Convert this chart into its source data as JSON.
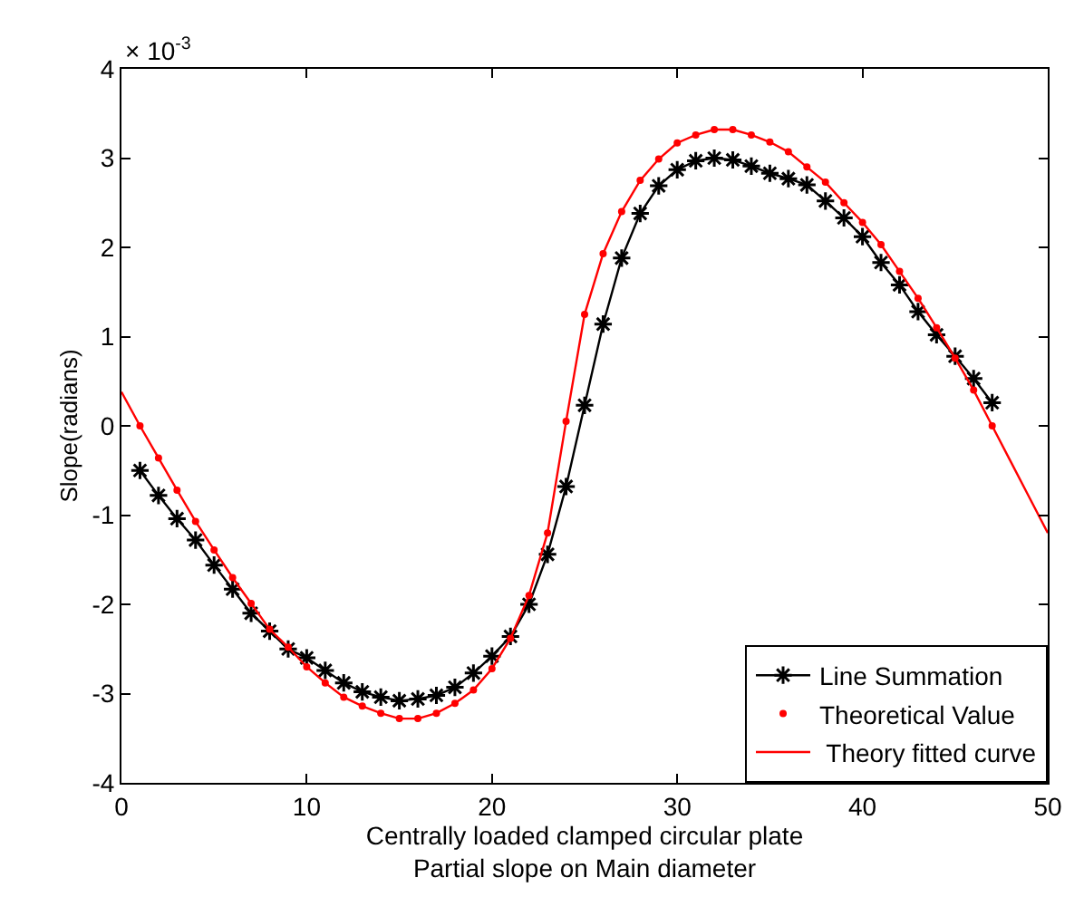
{
  "chart_data": {
    "type": "line",
    "xlabel": "Centrally loaded clamped circular plate\nPartial slope on Main diameter",
    "ylabel": "Slope(radians)",
    "annotations": [
      "× 10$^{-3}$"
    ],
    "xlim": [
      0,
      50
    ],
    "xticks": [
      0,
      10,
      20,
      30,
      40,
      50
    ],
    "ylim": [
      -4,
      4
    ],
    "yticks": [
      -4,
      -3,
      -2,
      -1,
      0,
      1,
      2,
      3,
      4
    ],
    "legend": "bottom right",
    "series": [
      {
        "name": "Line Summation",
        "color": "#000000",
        "marker": "cross",
        "line_style": "solid",
        "x": [
          1,
          2,
          3,
          4,
          5,
          6,
          7,
          8,
          9,
          10,
          11,
          12,
          13,
          14,
          15,
          16,
          17,
          18,
          19,
          20,
          21,
          22,
          23,
          24,
          25,
          26,
          27,
          28,
          29,
          30,
          31,
          32,
          33,
          34,
          35,
          36,
          37,
          38,
          39,
          40,
          41,
          42,
          43,
          44,
          45,
          46,
          47
        ],
        "values": [
          -0.5,
          -0.78,
          -1.04,
          -1.28,
          -1.56,
          -1.83,
          -2.1,
          -2.3,
          -2.5,
          -2.6,
          -2.74,
          -2.88,
          -2.98,
          -3.04,
          -3.08,
          -3.06,
          -3.02,
          -2.93,
          -2.77,
          -2.58,
          -2.36,
          -2.0,
          -1.44,
          -0.68,
          0.23,
          1.14,
          1.88,
          2.38,
          2.69,
          2.87,
          2.97,
          3.0,
          2.98,
          2.91,
          2.83,
          2.77,
          2.7,
          2.52,
          2.33,
          2.12,
          1.83,
          1.58,
          1.28,
          1.02,
          0.78,
          0.53,
          0.26
        ]
      },
      {
        "name": "Theoretical Value",
        "type": "scatter",
        "color": "#ff0000",
        "marker": "circle",
        "x": [
          1,
          2,
          3,
          4,
          5,
          6,
          7,
          8,
          9,
          10,
          11,
          12,
          13,
          14,
          15,
          16,
          17,
          18,
          19,
          20,
          21,
          22,
          23,
          24,
          25,
          26,
          27,
          28,
          29,
          30,
          31,
          32,
          33,
          34,
          35,
          36,
          37,
          38,
          39,
          40,
          41,
          42,
          43,
          44,
          45,
          46,
          47
        ],
        "values": [
          0.0,
          -0.36,
          -0.72,
          -1.07,
          -1.39,
          -1.7,
          -1.99,
          -2.28,
          -2.48,
          -2.7,
          -2.88,
          -3.04,
          -3.14,
          -3.22,
          -3.28,
          -3.28,
          -3.22,
          -3.11,
          -2.96,
          -2.72,
          -2.38,
          -1.9,
          -1.2,
          0.05,
          1.25,
          1.93,
          2.4,
          2.75,
          2.99,
          3.17,
          3.26,
          3.32,
          3.32,
          3.26,
          3.18,
          3.07,
          2.9,
          2.73,
          2.5,
          2.28,
          2.03,
          1.73,
          1.43,
          1.1,
          0.76,
          0.4,
          0.0
        ]
      },
      {
        "name": " Theory fitted curve",
        "color": "#ff0000",
        "marker": "none",
        "line_style": "solid",
        "x": [
          0,
          1,
          2,
          3,
          4,
          5,
          6,
          7,
          8,
          9,
          10,
          11,
          12,
          13,
          14,
          15,
          16,
          17,
          18,
          19,
          20,
          21,
          22,
          23,
          24,
          25,
          26,
          27,
          28,
          29,
          30,
          31,
          32,
          33,
          34,
          35,
          36,
          37,
          38,
          39,
          40,
          41,
          42,
          43,
          44,
          45,
          46,
          47,
          48,
          49,
          50
        ],
        "values": [
          0.38,
          0.0,
          -0.36,
          -0.72,
          -1.07,
          -1.39,
          -1.7,
          -1.99,
          -2.28,
          -2.48,
          -2.7,
          -2.88,
          -3.04,
          -3.14,
          -3.22,
          -3.28,
          -3.28,
          -3.22,
          -3.11,
          -2.96,
          -2.72,
          -2.38,
          -1.9,
          -1.2,
          0.05,
          1.25,
          1.93,
          2.4,
          2.75,
          2.99,
          3.17,
          3.26,
          3.32,
          3.32,
          3.26,
          3.18,
          3.07,
          2.9,
          2.73,
          2.5,
          2.28,
          2.03,
          1.73,
          1.43,
          1.1,
          0.76,
          0.4,
          0.0,
          -0.4,
          -0.8,
          -1.2
        ]
      }
    ]
  }
}
